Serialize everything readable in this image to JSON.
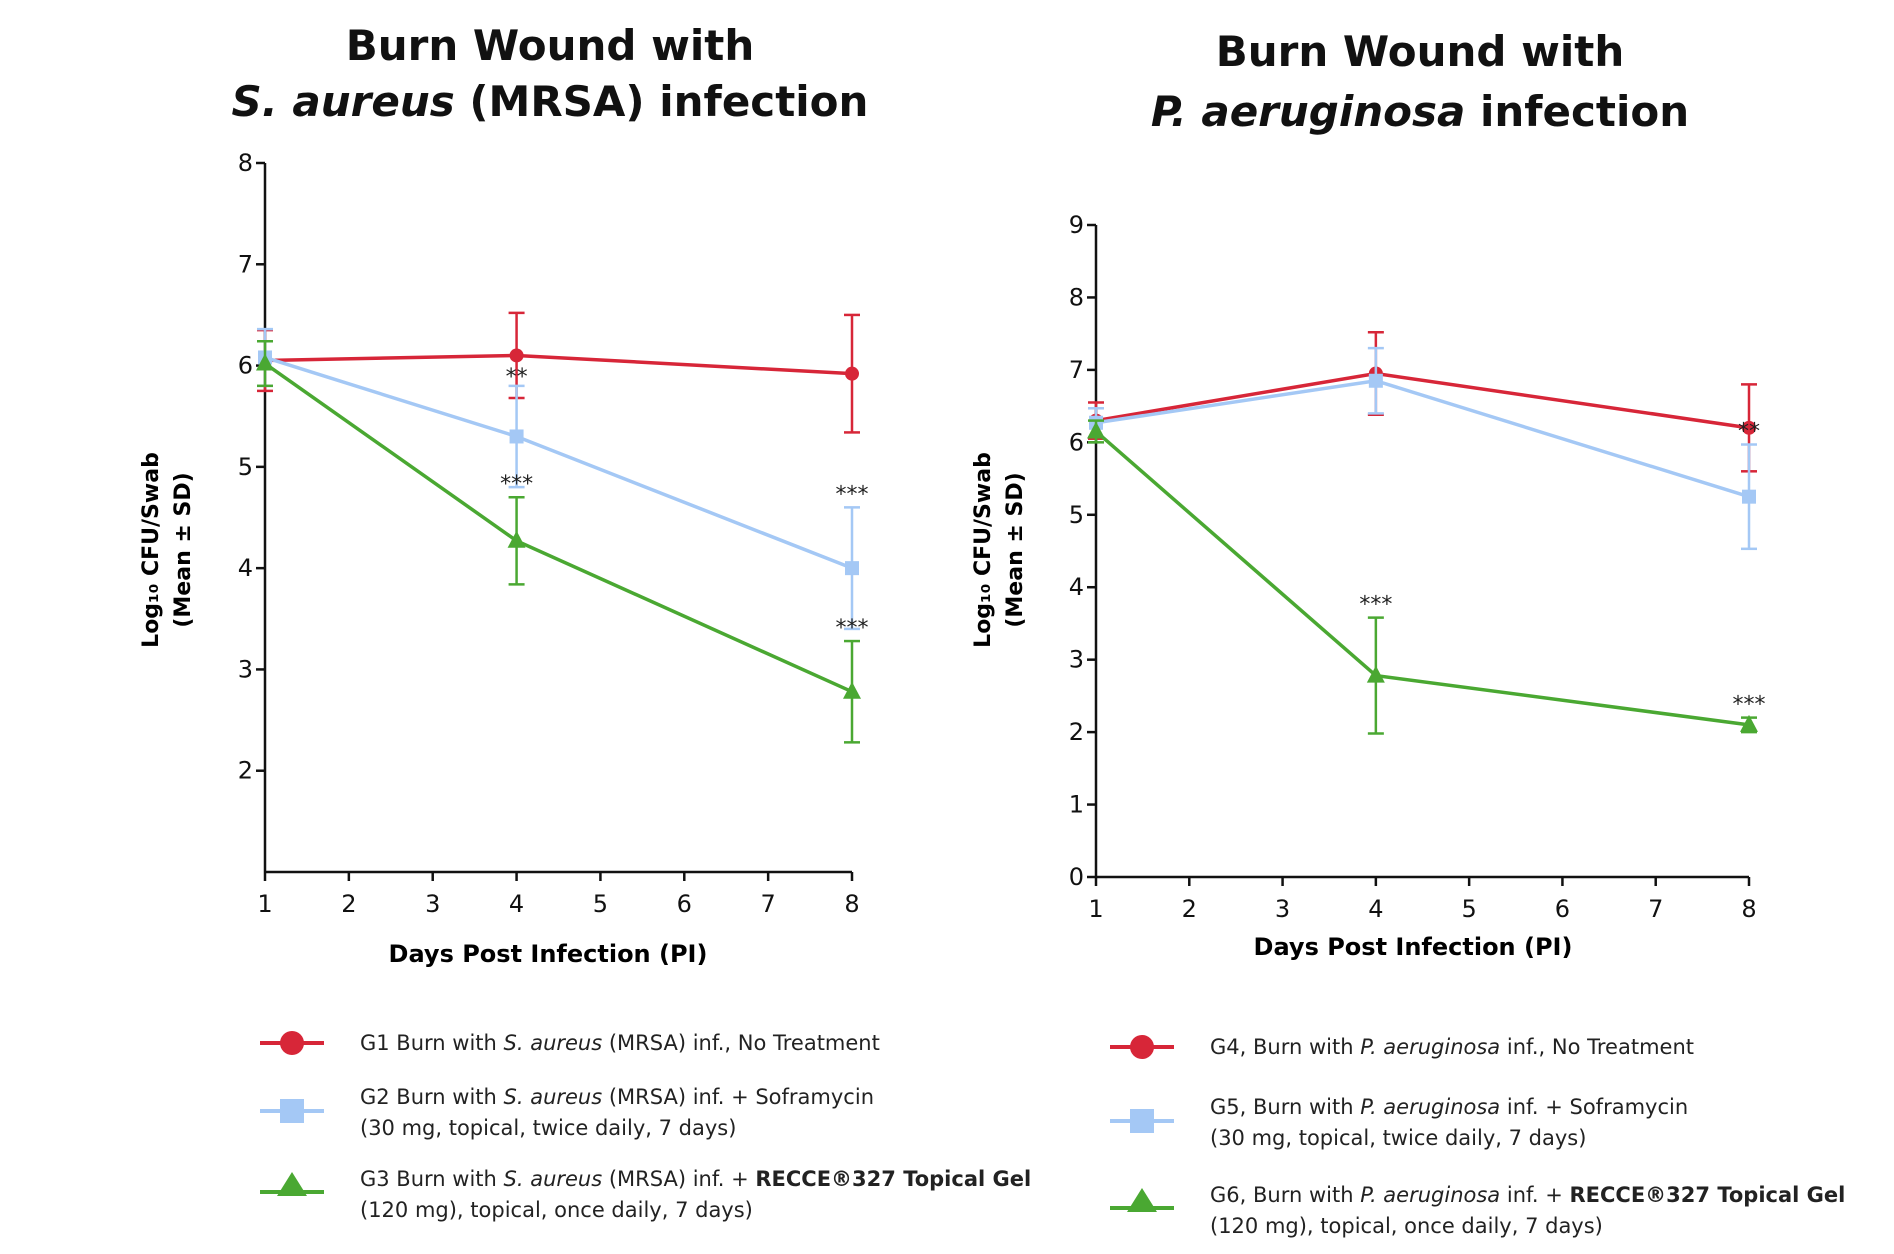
{
  "charts": [
    {
      "title_line1": "Burn Wound with",
      "title_species": "S. aureus",
      "title_rest": " (MRSA) infection",
      "ylabel_line1": "Log₁₀ CFU/Swab",
      "ylabel_line2": "(Mean ± SD)",
      "xlabel": "Days Post Infection (PI)",
      "legend": [
        {
          "prefix": "G1 Burn with ",
          "species": "S. aureus",
          "suffix": " (MRSA) inf., No Treatment",
          "bold": "",
          "line2": ""
        },
        {
          "prefix": "G2 Burn with ",
          "species": "S. aureus",
          "suffix": " (MRSA) inf. + Soframycin",
          "bold": "",
          "line2": "(30 mg, topical, twice daily, 7 days)"
        },
        {
          "prefix": "G3 Burn with ",
          "species": "S. aureus",
          "suffix": " (MRSA) inf. + ",
          "bold": "RECCE®327 Topical Gel",
          "line2": "(120 mg), topical, once daily, 7 days)"
        }
      ]
    },
    {
      "title_line1": "Burn Wound with",
      "title_species": "P. aeruginosa",
      "title_rest": " infection",
      "ylabel_line1": "Log₁₀ CFU/Swab",
      "ylabel_line2": "(Mean ± SD)",
      "xlabel": "Days Post Infection (PI)",
      "legend": [
        {
          "prefix": "G4, Burn with ",
          "species": "P. aeruginosa",
          "suffix": " inf., No Treatment",
          "bold": "",
          "line2": ""
        },
        {
          "prefix": "G5,  Burn with ",
          "species": "P. aeruginosa",
          "suffix": " inf. + Soframycin",
          "bold": "",
          "line2": "(30 mg, topical, twice daily, 7 days)"
        },
        {
          "prefix": "G6, Burn with ",
          "species": "P. aeruginosa",
          "suffix": " inf. + ",
          "bold": "RECCE®327 Topical Gel",
          "line2": "(120 mg), topical, once daily, 7 days)"
        }
      ]
    }
  ],
  "colors": {
    "red": "#d72638",
    "blue": "#a4c8f5",
    "green": "#4aa832",
    "axis": "#111111"
  },
  "chart_data": [
    {
      "type": "line",
      "title": "Burn Wound with S. aureus (MRSA) infection",
      "xlabel": "Days Post Infection (PI)",
      "ylabel": "Log₁₀ CFU/Swab (Mean ± SD)",
      "xlim": [
        1,
        8
      ],
      "ylim": [
        1,
        8
      ],
      "xticks": [
        1,
        2,
        3,
        4,
        5,
        6,
        7,
        8
      ],
      "yticks": [
        2,
        3,
        4,
        5,
        6,
        7,
        8
      ],
      "x": [
        1,
        4,
        8
      ],
      "legend_position": "bottom",
      "series": [
        {
          "name": "G1 Burn with S. aureus (MRSA) inf., No Treatment",
          "color": "red",
          "marker": "circle",
          "values": [
            6.05,
            6.1,
            5.92
          ],
          "sd": [
            0.3,
            0.42,
            0.58
          ],
          "annotations": [
            "",
            "",
            ""
          ]
        },
        {
          "name": "G2 Burn with S. aureus (MRSA) inf. + Soframycin (30 mg, topical, twice daily, 7 days)",
          "color": "blue",
          "marker": "square",
          "values": [
            6.08,
            5.3,
            4.0
          ],
          "sd": [
            0.28,
            0.5,
            0.6
          ],
          "annotations": [
            "",
            "**",
            "***"
          ]
        },
        {
          "name": "G3 Burn with S. aureus (MRSA) inf. + RECCE®327 Topical Gel (120 mg), topical, once daily, 7 days)",
          "color": "green",
          "marker": "triangle",
          "values": [
            6.02,
            4.27,
            2.78
          ],
          "sd": [
            0.22,
            0.43,
            0.5
          ],
          "annotations": [
            "",
            "***",
            "***"
          ]
        }
      ]
    },
    {
      "type": "line",
      "title": "Burn Wound with P. aeruginosa infection",
      "xlabel": "Days Post Infection (PI)",
      "ylabel": "Log₁₀ CFU/Swab (Mean ± SD)",
      "xlim": [
        1,
        8
      ],
      "ylim": [
        0,
        9
      ],
      "xticks": [
        1,
        2,
        3,
        4,
        5,
        6,
        7,
        8
      ],
      "yticks": [
        0,
        1,
        2,
        3,
        4,
        5,
        6,
        7,
        8,
        9
      ],
      "x": [
        1,
        4,
        8
      ],
      "legend_position": "bottom",
      "series": [
        {
          "name": "G4, Burn with P. aeruginosa inf., No Treatment",
          "color": "red",
          "marker": "circle",
          "values": [
            6.3,
            6.95,
            6.2
          ],
          "sd": [
            0.25,
            0.57,
            0.6
          ],
          "annotations": [
            "",
            "",
            ""
          ]
        },
        {
          "name": "G5, Burn with P. aeruginosa inf. + Soframycin (30 mg, topical, twice daily, 7 days)",
          "color": "blue",
          "marker": "square",
          "values": [
            6.27,
            6.85,
            5.25
          ],
          "sd": [
            0.2,
            0.45,
            0.72
          ],
          "annotations": [
            "",
            "",
            "**"
          ]
        },
        {
          "name": "G6, Burn with P. aeruginosa inf. + RECCE®327 Topical Gel (120 mg), topical, once daily, 7 days)",
          "color": "green",
          "marker": "triangle",
          "values": [
            6.15,
            2.78,
            2.1
          ],
          "sd": [
            0.15,
            0.8,
            0.1
          ],
          "annotations": [
            "",
            "***",
            "***"
          ]
        }
      ]
    }
  ]
}
